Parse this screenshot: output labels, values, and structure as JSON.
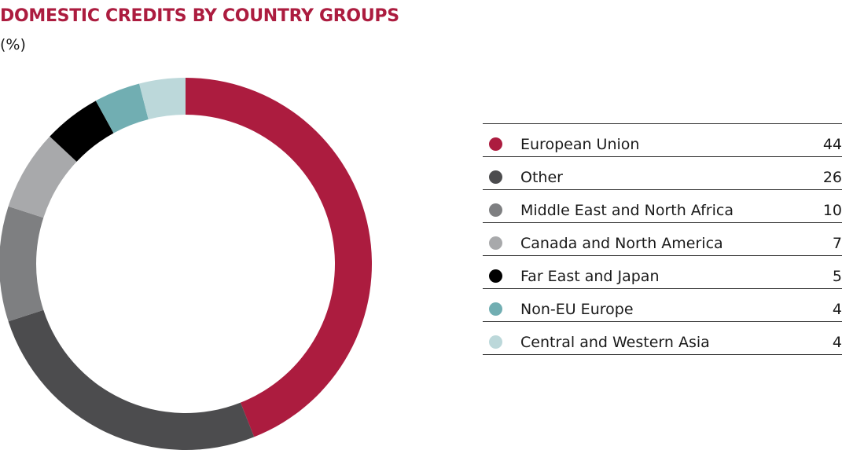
{
  "chart_data": {
    "type": "pie",
    "title": "DOMESTIC CREDITS BY COUNTRY GROUPS",
    "subtitle": "(%)",
    "legend_position": "right",
    "slices": [
      {
        "label": "European Union",
        "value": 44,
        "color": "#ac1c3f"
      },
      {
        "label": "Other",
        "value": 26,
        "color": "#4c4c4e"
      },
      {
        "label": "Middle East and North Africa",
        "value": 10,
        "color": "#7e7f81"
      },
      {
        "label": "Canada and North America",
        "value": 7,
        "color": "#a8a9ab"
      },
      {
        "label": "Far East and Japan",
        "value": 5,
        "color": "#000000"
      },
      {
        "label": "Non-EU Europe",
        "value": 4,
        "color": "#71aeb2"
      },
      {
        "label": "Central and Western Asia",
        "value": 4,
        "color": "#bcd8da"
      }
    ]
  }
}
